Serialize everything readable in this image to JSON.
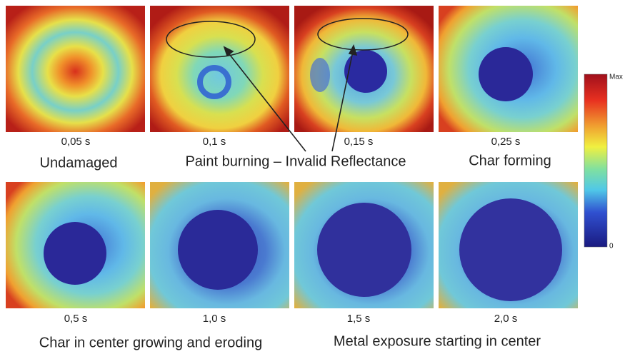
{
  "panels": [
    {
      "time": "0,05 s"
    },
    {
      "time": "0,1 s"
    },
    {
      "time": "0,15 s"
    },
    {
      "time": "0,25 s"
    },
    {
      "time": "0,5 s"
    },
    {
      "time": "1,0 s"
    },
    {
      "time": "1,5 s"
    },
    {
      "time": "2,0 s"
    }
  ],
  "captions": [
    "Undamaged",
    "Paint burning – Invalid Reflectance",
    "Char forming",
    "Char in center growing and eroding",
    "Metal exposure starting in center"
  ],
  "colorbar": {
    "max_label": "Max",
    "min_label": "0"
  }
}
